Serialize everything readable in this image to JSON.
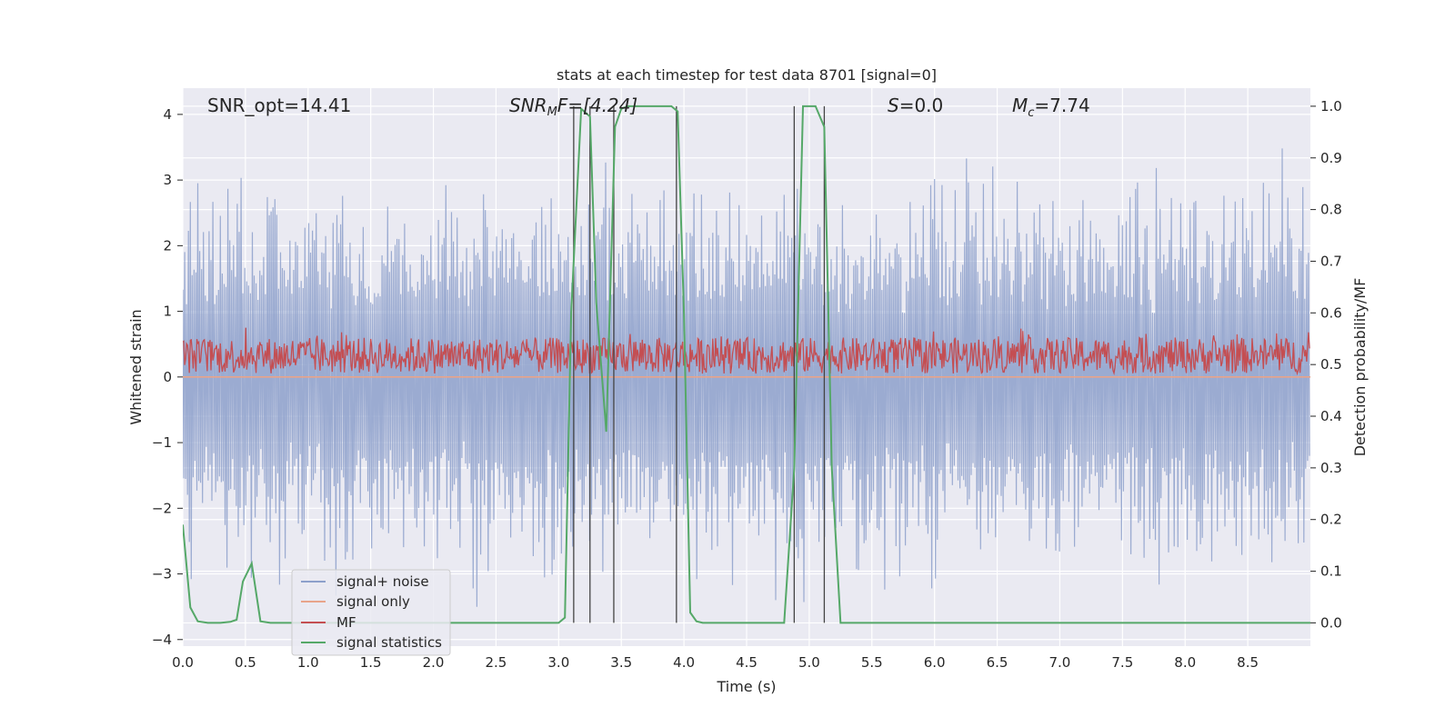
{
  "chart_data": {
    "type": "line",
    "title": "stats at each timestep for test data 8701 [signal=0]",
    "xlabel": "Time (s)",
    "ylabel": "Whitened strain",
    "y2label": "Detection probability/MF",
    "xlim": [
      0.0,
      9.0
    ],
    "ylim": [
      -4.1,
      4.4
    ],
    "y2lim": [
      -0.045,
      1.035
    ],
    "xticks": [
      "0.0",
      "0.5",
      "1.0",
      "1.5",
      "2.0",
      "2.5",
      "3.0",
      "3.5",
      "4.0",
      "4.5",
      "5.0",
      "5.5",
      "6.0",
      "6.5",
      "7.0",
      "7.5",
      "8.0",
      "8.5"
    ],
    "yticks": [
      "4",
      "3",
      "2",
      "1",
      "0",
      "−1",
      "−2",
      "−3",
      "−4"
    ],
    "y2ticks": [
      "1.0",
      "0.9",
      "0.8",
      "0.7",
      "0.6",
      "0.5",
      "0.4",
      "0.3",
      "0.2",
      "0.1",
      "0.0"
    ],
    "grid": true,
    "legend_position": "lower-left",
    "annotations": {
      "snr_opt": "SNR_opt=14.41",
      "snr_mf_base": "SNR",
      "snr_mf_sub": "M",
      "snr_mf_rest": "F=[4.24]",
      "s_label": "S",
      "s_value": "=0.0",
      "mc_base": "M",
      "mc_sub": "c",
      "mc_value": "=7.74"
    },
    "series": [
      {
        "name": "signal+ noise",
        "color": "#8da0cb",
        "noise_amplitude": 2.6,
        "axis": "left"
      },
      {
        "name": "signal only",
        "color": "#e8a48a",
        "values": "constant 0",
        "axis": "left"
      },
      {
        "name": "MF",
        "color": "#c44e52",
        "baseline": 0.05,
        "peak": 0.75,
        "axis": "left"
      },
      {
        "name": "signal statistics",
        "color": "#55a868",
        "axis": "right",
        "x": [
          0.0,
          0.06,
          0.12,
          0.2,
          0.3,
          0.38,
          0.43,
          0.48,
          0.55,
          0.62,
          0.7,
          3.0,
          3.05,
          3.1,
          3.18,
          3.25,
          3.3,
          3.38,
          3.45,
          3.5,
          3.55,
          3.9,
          3.95,
          4.0,
          4.05,
          4.1,
          4.15,
          4.8,
          4.88,
          4.95,
          5.05,
          5.12,
          5.18,
          5.25,
          9.0
        ],
        "y": [
          0.19,
          0.03,
          0.003,
          0.0,
          0.0,
          0.002,
          0.006,
          0.08,
          0.115,
          0.003,
          0.0,
          0.0,
          0.01,
          0.6,
          0.995,
          0.98,
          0.62,
          0.37,
          0.96,
          0.995,
          1.0,
          1.0,
          0.99,
          0.6,
          0.02,
          0.003,
          0.0,
          0.0,
          0.3,
          1.0,
          1.0,
          0.96,
          0.3,
          0.0,
          0.0
        ]
      }
    ],
    "vertical_lines_x": [
      3.12,
      3.25,
      3.44,
      3.94,
      4.88,
      5.12
    ]
  },
  "colors": {
    "axes_bg": "#eaeaf2",
    "grid": "#ffffff",
    "vlines": "#444444"
  }
}
